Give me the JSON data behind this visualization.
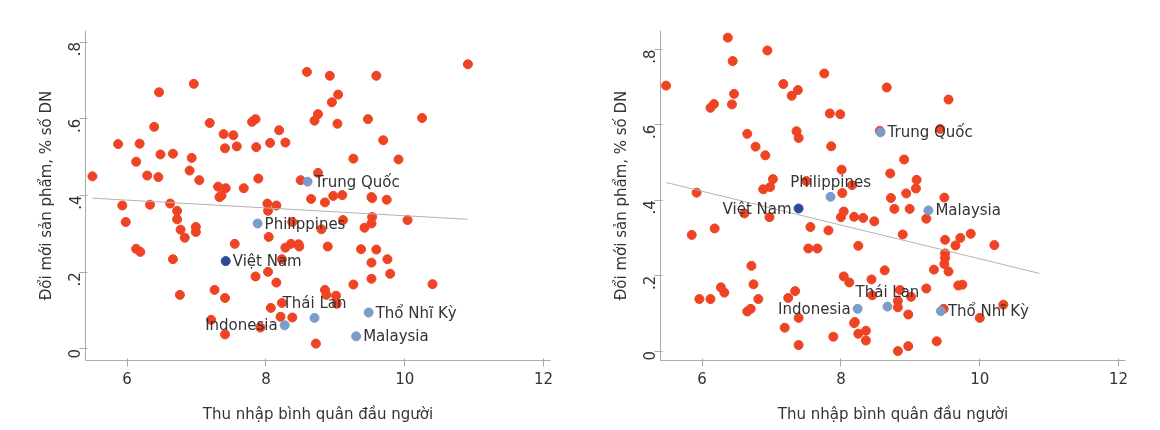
{
  "chart_data": [
    {
      "type": "scatter",
      "xlabel": "Thu nhập bình quân đầu người",
      "ylabel": "Đổi mới sản phẩm, % số DN",
      "xlim": [
        5.4,
        12.1
      ],
      "ylim": [
        -0.03,
        0.83
      ],
      "xticks": [
        6,
        8,
        10,
        12
      ],
      "yticks": [
        {
          "value": 0,
          "label": "0"
        },
        {
          "value": 0.2,
          "label": ".2"
        },
        {
          "value": 0.4,
          "label": ".4"
        },
        {
          "value": 0.6,
          "label": ".6"
        },
        {
          "value": 0.8,
          "label": ".8"
        }
      ],
      "grid": false,
      "legend": false,
      "marker": "circle",
      "series": [
        {
          "color": "#ee4423",
          "x": [
            5.5,
            5.87,
            6.18,
            6.13,
            6.46,
            6.39,
            6.48,
            6.29,
            6.45,
            6.66,
            6.96,
            6.93,
            6.9,
            7.04,
            7.19,
            7.39,
            7.53,
            7.41,
            7.58,
            7.31,
            7.42,
            7.33,
            7.36,
            7.68,
            7.8,
            7.85,
            7.86,
            7.89,
            8.06,
            8.19,
            8.28,
            8.59,
            8.7,
            8.75,
            8.92,
            8.95,
            9.04,
            9.03,
            8.75,
            8.5,
            9.26,
            9.47,
            9.59,
            9.69,
            9.91,
            10.25,
            10.91,
            5.93,
            6.33,
            6.62,
            6.72,
            5.98,
            6.72,
            6.77,
            6.99,
            6.99,
            6.83,
            6.13,
            6.19,
            6.66,
            7.55,
            8.02,
            8.03,
            8.15,
            8.38,
            8.04,
            8.28,
            8.36,
            8.47,
            8.48,
            8.23,
            8.65,
            8.85,
            8.97,
            9.1,
            9.53,
            9.52,
            9.74,
            9.11,
            8.8,
            9.42,
            9.53,
            9.52,
            10.04,
            8.89,
            9.37,
            9.59,
            9.52,
            9.75,
            9.79,
            9.52,
            9.26,
            10.4,
            8.03,
            7.85,
            8.15,
            8.85,
            8.87,
            9.01,
            9.02,
            8.23,
            8.07,
            8.21,
            8.38,
            7.26,
            7.41,
            6.76,
            7.21,
            7.92,
            7.41,
            8.72
          ],
          "values": [
            0.45,
            0.534,
            0.535,
            0.488,
            0.669,
            0.579,
            0.507,
            0.452,
            0.448,
            0.509,
            0.691,
            0.498,
            0.465,
            0.44,
            0.589,
            0.56,
            0.557,
            0.523,
            0.528,
            0.423,
            0.419,
            0.396,
            0.4,
            0.419,
            0.592,
            0.599,
            0.526,
            0.444,
            0.537,
            0.57,
            0.538,
            0.722,
            0.595,
            0.612,
            0.712,
            0.643,
            0.663,
            0.587,
            0.459,
            0.44,
            0.496,
            0.599,
            0.712,
            0.544,
            0.494,
            0.602,
            0.742,
            0.374,
            0.376,
            0.379,
            0.36,
            0.331,
            0.338,
            0.311,
            0.318,
            0.305,
            0.29,
            0.261,
            0.253,
            0.234,
            0.274,
            0.379,
            0.36,
            0.374,
            0.331,
            0.292,
            0.264,
            0.274,
            0.273,
            0.267,
            0.234,
            0.391,
            0.382,
            0.399,
            0.401,
            0.393,
            0.396,
            0.389,
            0.336,
            0.312,
            0.316,
            0.344,
            0.327,
            0.336,
            0.267,
            0.26,
            0.259,
            0.225,
            0.234,
            0.196,
            0.183,
            0.168,
            0.169,
            0.201,
            0.189,
            0.173,
            0.154,
            0.141,
            0.139,
            0.118,
            0.12,
            0.107,
            0.084,
            0.082,
            0.154,
            0.133,
            0.141,
            0.076,
            0.056,
            0.038,
            0.014
          ]
        },
        {
          "type": "line",
          "marker": "none",
          "color": "#b4b4b4",
          "x": [
            5.5,
            10.91
          ],
          "values": [
            0.393,
            0.338
          ]
        },
        {
          "name": "Trung Quốc",
          "color": "#7b9cc9",
          "x": [
            8.6
          ],
          "values": [
            0.436
          ]
        },
        {
          "name": "Philippines",
          "color": "#7b9cc9",
          "x": [
            7.88
          ],
          "values": [
            0.327
          ]
        },
        {
          "name": "Việt Nam",
          "color": "#2b4a9b",
          "x": [
            7.42
          ],
          "values": [
            0.229
          ]
        },
        {
          "name": "Thái Lan",
          "color": "#7b9cc9",
          "x": [
            8.7
          ],
          "values": [
            0.081
          ]
        },
        {
          "name": "Indonesia",
          "color": "#7b9cc9",
          "x": [
            8.27
          ],
          "values": [
            0.062
          ]
        },
        {
          "name": "Thổ Nhĩ Kỳ",
          "color": "#7b9cc9",
          "x": [
            9.48
          ],
          "values": [
            0.095
          ]
        },
        {
          "name": "Malaysia",
          "color": "#7b9cc9",
          "x": [
            9.3
          ],
          "values": [
            0.033
          ]
        }
      ]
    },
    {
      "type": "scatter",
      "xlabel": "Thu nhập bình quân đầu người",
      "ylabel": "Đổi mới sản phẩm, % số DN",
      "xlim": [
        5.4,
        12.1
      ],
      "ylim": [
        -0.025,
        0.85
      ],
      "xticks": [
        6,
        8,
        10,
        12
      ],
      "yticks": [
        {
          "value": 0,
          "label": "0"
        },
        {
          "value": 0.2,
          "label": ".2"
        },
        {
          "value": 0.4,
          "label": ".4"
        },
        {
          "value": 0.6,
          "label": ".6"
        },
        {
          "value": 0.8,
          "label": ".8"
        }
      ],
      "grid": false,
      "legend": false,
      "marker": "circle",
      "series": [
        {
          "color": "#ee4423",
          "x": [
            5.48,
            6.37,
            6.44,
            6.46,
            6.43,
            6.12,
            6.17,
            6.94,
            6.65,
            6.77,
            6.91,
            7.17,
            7.29,
            7.38,
            7.36,
            7.39,
            7.76,
            7.84,
            7.99,
            7.86,
            8.66,
            9.55,
            9.43,
            8.56,
            8.01,
            8.91,
            7.02,
            6.88,
            6.98,
            5.92,
            7.5,
            8.02,
            8.16,
            8.71,
            9.09,
            8.94,
            9.08,
            9.49,
            8.72,
            8.77,
            8.99,
            9.23,
            6.61,
            6.97,
            8.04,
            8.0,
            8.19,
            8.32,
            8.48,
            5.85,
            6.18,
            7.56,
            7.82,
            7.53,
            7.66,
            8.25,
            8.89,
            9.5,
            9.72,
            9.87,
            9.65,
            10.21,
            9.5,
            9.5,
            9.49,
            9.55,
            9.34,
            8.63,
            9.69,
            9.75,
            9.23,
            6.71,
            6.74,
            6.27,
            6.32,
            5.96,
            6.12,
            6.81,
            7.24,
            7.34,
            6.7,
            6.65,
            8.04,
            8.12,
            8.44,
            8.45,
            8.85,
            8.82,
            8.82,
            9.01,
            8.97,
            9.48,
            10.0,
            10.34,
            7.39,
            7.19,
            8.19,
            8.2,
            8.25,
            8.36,
            8.36,
            7.89,
            7.39,
            8.82,
            8.97,
            9.38
          ],
          "values": [
            0.704,
            0.831,
            0.769,
            0.682,
            0.654,
            0.645,
            0.655,
            0.797,
            0.576,
            0.542,
            0.519,
            0.708,
            0.677,
            0.692,
            0.583,
            0.565,
            0.736,
            0.63,
            0.628,
            0.543,
            0.699,
            0.667,
            0.589,
            0.584,
            0.481,
            0.508,
            0.456,
            0.429,
            0.435,
            0.42,
            0.451,
            0.419,
            0.44,
            0.471,
            0.454,
            0.418,
            0.431,
            0.407,
            0.406,
            0.377,
            0.377,
            0.351,
            0.365,
            0.355,
            0.37,
            0.355,
            0.356,
            0.353,
            0.344,
            0.308,
            0.325,
            0.329,
            0.32,
            0.272,
            0.272,
            0.279,
            0.309,
            0.295,
            0.3,
            0.311,
            0.28,
            0.281,
            0.259,
            0.247,
            0.231,
            0.211,
            0.216,
            0.214,
            0.174,
            0.176,
            0.166,
            0.226,
            0.177,
            0.169,
            0.155,
            0.138,
            0.138,
            0.138,
            0.141,
            0.159,
            0.112,
            0.105,
            0.198,
            0.182,
            0.19,
            0.148,
            0.162,
            0.133,
            0.116,
            0.144,
            0.097,
            0.112,
            0.088,
            0.123,
            0.088,
            0.062,
            0.074,
            0.077,
            0.046,
            0.054,
            0.028,
            0.038,
            0.016,
            0.0,
            0.013,
            0.026
          ]
        },
        {
          "type": "line",
          "marker": "none",
          "color": "#b4b4b4",
          "x": [
            5.48,
            10.86
          ],
          "values": [
            0.447,
            0.206
          ]
        },
        {
          "name": "Trung Quốc",
          "color": "#7b9cc9",
          "x": [
            8.57
          ],
          "values": [
            0.58
          ]
        },
        {
          "name": "Philippines",
          "color": "#7b9cc9",
          "x": [
            7.85
          ],
          "values": [
            0.409
          ]
        },
        {
          "name": "Việt Nam",
          "color": "#2b4a9b",
          "x": [
            7.39
          ],
          "values": [
            0.378
          ]
        },
        {
          "name": "Malaysia",
          "color": "#7b9cc9",
          "x": [
            9.26
          ],
          "values": [
            0.373
          ]
        },
        {
          "name": "Indonesia",
          "color": "#7b9cc9",
          "x": [
            8.24
          ],
          "values": [
            0.112
          ]
        },
        {
          "name": "Thái Lan",
          "color": "#7b9cc9",
          "x": [
            8.67
          ],
          "values": [
            0.118
          ]
        },
        {
          "name": "Thổ Nhĩ Kỳ",
          "color": "#7b9cc9",
          "x": [
            9.44
          ],
          "values": [
            0.106
          ]
        }
      ]
    }
  ]
}
